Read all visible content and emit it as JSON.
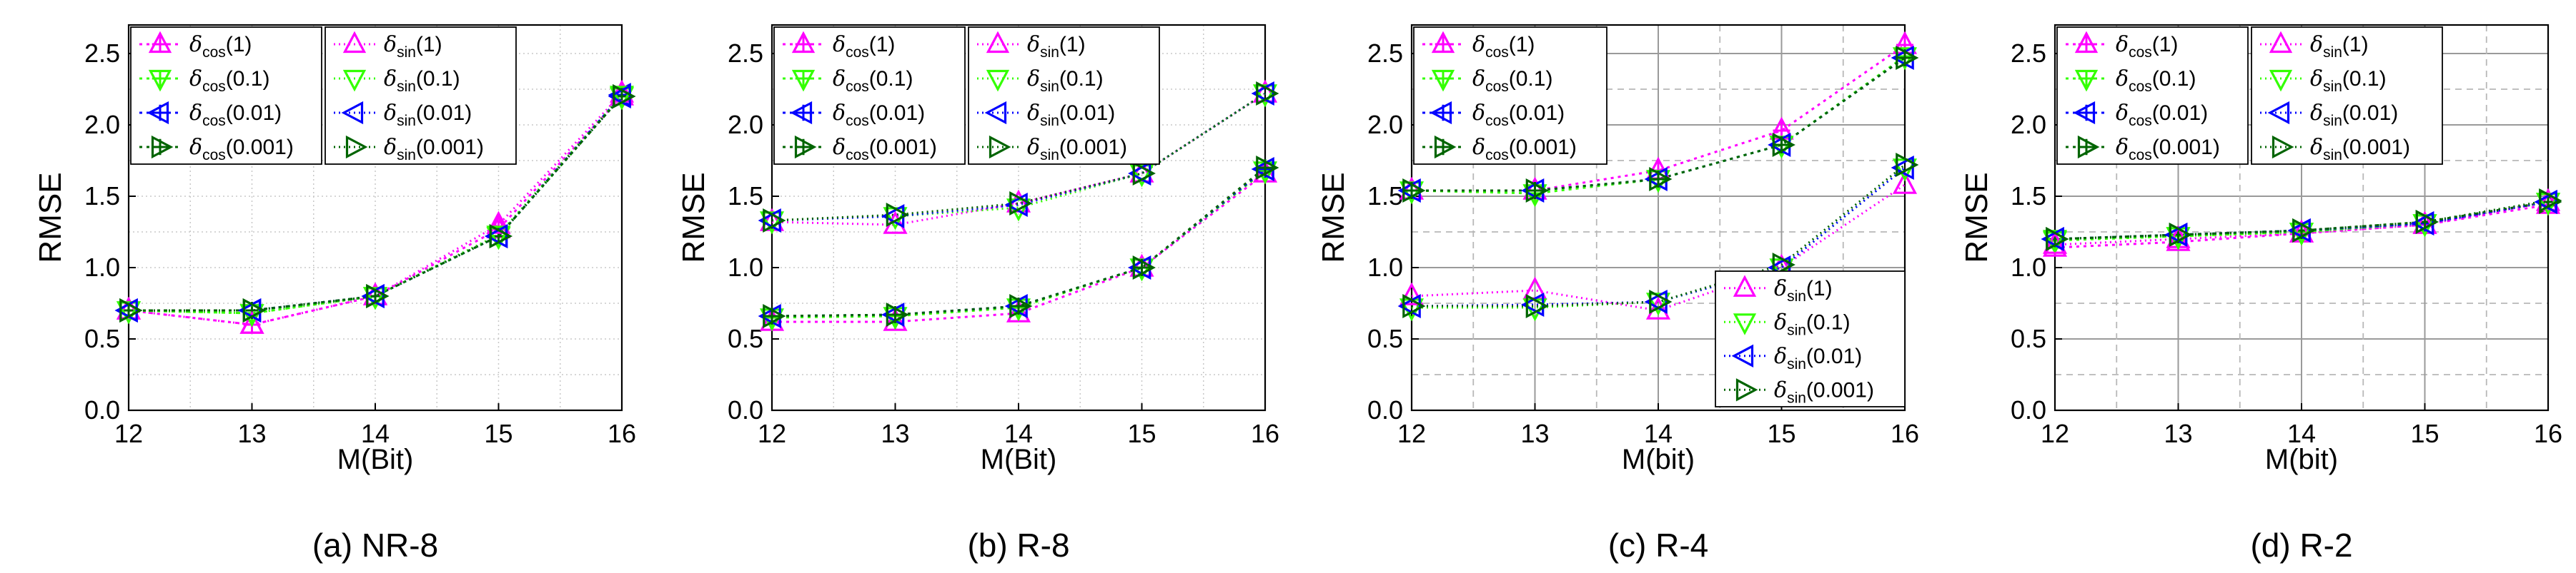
{
  "series_styles": [
    {
      "key": "cos1",
      "color": "#ff00ff",
      "marker": "tri-up-plus",
      "dash": "4,6"
    },
    {
      "key": "cos01",
      "color": "#33ff00",
      "marker": "tri-down-plus",
      "dash": "4,6"
    },
    {
      "key": "cos001",
      "color": "#0000ff",
      "marker": "tri-left-plus",
      "dash": "4,6"
    },
    {
      "key": "cos0001",
      "color": "#006400",
      "marker": "tri-right-plus",
      "dash": "4,6"
    },
    {
      "key": "sin1",
      "color": "#ff00ff",
      "marker": "tri-up",
      "dash": "2,5"
    },
    {
      "key": "sin01",
      "color": "#33ff00",
      "marker": "tri-down",
      "dash": "2,5"
    },
    {
      "key": "sin001",
      "color": "#0000ff",
      "marker": "tri-left",
      "dash": "2,5"
    },
    {
      "key": "sin0001",
      "color": "#006400",
      "marker": "tri-right",
      "dash": "2,5"
    }
  ],
  "legend_labels": {
    "cos1": {
      "sym": "δ",
      "sub": "cos",
      "arg": "(1)"
    },
    "cos01": {
      "sym": "δ",
      "sub": "cos",
      "arg": "(0.1)"
    },
    "cos001": {
      "sym": "δ",
      "sub": "cos",
      "arg": "(0.01)"
    },
    "cos0001": {
      "sym": "δ",
      "sub": "cos",
      "arg": "(0.001)"
    },
    "sin1": {
      "sym": "δ",
      "sub": "sin",
      "arg": "(1)"
    },
    "sin01": {
      "sym": "δ",
      "sub": "sin",
      "arg": "(0.1)"
    },
    "sin001": {
      "sym": "δ",
      "sub": "sin",
      "arg": "(0.01)"
    },
    "sin0001": {
      "sym": "δ",
      "sub": "sin",
      "arg": "(0.001)"
    }
  },
  "chart_data": [
    {
      "type": "line",
      "caption": "(a) NR-8",
      "xlabel": "M(Bit)",
      "ylabel": "RMSE",
      "x": [
        12,
        13,
        14,
        15,
        16
      ],
      "xlim": [
        12,
        16
      ],
      "ylim": [
        0,
        2.7
      ],
      "yticks": [
        0.0,
        0.5,
        1.0,
        1.5,
        2.0,
        2.5
      ],
      "grid": "minor-dotted",
      "legend_placement": "top-left",
      "legend_columns": [
        [
          "cos1",
          "cos01",
          "cos001",
          "cos0001"
        ],
        [
          "sin1",
          "sin01",
          "sin001",
          "sin0001"
        ]
      ],
      "series": [
        {
          "key": "cos1",
          "values": [
            0.7,
            0.6,
            0.8,
            1.27,
            2.2
          ]
        },
        {
          "key": "cos01",
          "values": [
            0.7,
            0.68,
            0.8,
            1.22,
            2.2
          ]
        },
        {
          "key": "cos001",
          "values": [
            0.7,
            0.7,
            0.8,
            1.22,
            2.21
          ]
        },
        {
          "key": "cos0001",
          "values": [
            0.7,
            0.7,
            0.8,
            1.22,
            2.2
          ]
        },
        {
          "key": "sin1",
          "values": [
            0.7,
            0.6,
            0.8,
            1.3,
            2.22
          ]
        },
        {
          "key": "sin01",
          "values": [
            0.7,
            0.68,
            0.8,
            1.23,
            2.21
          ]
        },
        {
          "key": "sin001",
          "values": [
            0.7,
            0.7,
            0.8,
            1.22,
            2.2
          ]
        },
        {
          "key": "sin0001",
          "values": [
            0.7,
            0.7,
            0.8,
            1.22,
            2.2
          ]
        }
      ]
    },
    {
      "type": "line",
      "caption": "(b) R-8",
      "xlabel": "M(Bit)",
      "ylabel": "RMSE",
      "x": [
        12,
        13,
        14,
        15,
        16
      ],
      "xlim": [
        12,
        16
      ],
      "ylim": [
        0,
        2.7
      ],
      "yticks": [
        0.0,
        0.5,
        1.0,
        1.5,
        2.0,
        2.5
      ],
      "grid": "minor-dotted",
      "legend_placement": "top-left",
      "legend_columns": [
        [
          "cos1",
          "cos01",
          "cos001",
          "cos0001"
        ],
        [
          "sin1",
          "sin01",
          "sin001",
          "sin0001"
        ]
      ],
      "series": [
        {
          "key": "cos1",
          "values": [
            0.62,
            0.62,
            0.68,
            1.0,
            1.66
          ]
        },
        {
          "key": "cos01",
          "values": [
            0.65,
            0.66,
            0.72,
            1.0,
            1.68
          ]
        },
        {
          "key": "cos001",
          "values": [
            0.66,
            0.67,
            0.73,
            1.0,
            1.69
          ]
        },
        {
          "key": "cos0001",
          "values": [
            0.66,
            0.67,
            0.73,
            1.0,
            1.7
          ]
        },
        {
          "key": "sin1",
          "values": [
            1.32,
            1.3,
            1.45,
            1.66,
            2.22
          ]
        },
        {
          "key": "sin01",
          "values": [
            1.33,
            1.36,
            1.42,
            1.66,
            2.22
          ]
        },
        {
          "key": "sin001",
          "values": [
            1.33,
            1.36,
            1.44,
            1.66,
            2.22
          ]
        },
        {
          "key": "sin0001",
          "values": [
            1.33,
            1.37,
            1.45,
            1.66,
            2.22
          ]
        }
      ]
    },
    {
      "type": "line",
      "caption": "(c) R-4",
      "xlabel": "M(bit)",
      "ylabel": "RMSE",
      "x": [
        12,
        13,
        14,
        15,
        16
      ],
      "xlim": [
        12,
        16
      ],
      "ylim": [
        0,
        2.7
      ],
      "yticks": [
        0.0,
        0.5,
        1.0,
        1.5,
        2.0,
        2.5
      ],
      "grid": "major-solid-minor-dashed",
      "legend_placement": "split: cos top-left, sin bottom-right",
      "legend_columns": [
        [
          "cos1",
          "cos01",
          "cos001",
          "cos0001"
        ]
      ],
      "legend2_columns": [
        [
          "sin1",
          "sin01",
          "sin001",
          "sin0001"
        ]
      ],
      "series": [
        {
          "key": "cos1",
          "values": [
            1.54,
            1.54,
            1.68,
            1.96,
            2.56
          ]
        },
        {
          "key": "cos01",
          "values": [
            1.54,
            1.52,
            1.62,
            1.86,
            2.48
          ]
        },
        {
          "key": "cos001",
          "values": [
            1.54,
            1.54,
            1.62,
            1.86,
            2.47
          ]
        },
        {
          "key": "cos0001",
          "values": [
            1.54,
            1.54,
            1.62,
            1.86,
            2.47
          ]
        },
        {
          "key": "sin1",
          "values": [
            0.8,
            0.84,
            0.7,
            1.0,
            1.58
          ]
        },
        {
          "key": "sin01",
          "values": [
            0.72,
            0.72,
            0.76,
            1.0,
            1.7
          ]
        },
        {
          "key": "sin001",
          "values": [
            0.73,
            0.74,
            0.76,
            1.0,
            1.7
          ]
        },
        {
          "key": "sin0001",
          "values": [
            0.73,
            0.73,
            0.76,
            1.02,
            1.72
          ]
        }
      ]
    },
    {
      "type": "line",
      "caption": "(d) R-2",
      "xlabel": "M(bit)",
      "ylabel": "RMSE",
      "x": [
        12,
        13,
        14,
        15,
        16
      ],
      "xlim": [
        12,
        16
      ],
      "ylim": [
        0,
        2.7
      ],
      "yticks": [
        0.0,
        0.5,
        1.0,
        1.5,
        2.0,
        2.5
      ],
      "grid": "major-solid-minor-dashed",
      "legend_placement": "top-left",
      "legend_columns": [
        [
          "cos1",
          "cos01",
          "cos001",
          "cos0001"
        ],
        [
          "sin1",
          "sin01",
          "sin001",
          "sin0001"
        ]
      ],
      "series": [
        {
          "key": "cos1",
          "values": [
            1.14,
            1.18,
            1.24,
            1.3,
            1.44
          ]
        },
        {
          "key": "cos01",
          "values": [
            1.19,
            1.22,
            1.25,
            1.31,
            1.46
          ]
        },
        {
          "key": "cos001",
          "values": [
            1.2,
            1.23,
            1.26,
            1.31,
            1.46
          ]
        },
        {
          "key": "cos0001",
          "values": [
            1.2,
            1.23,
            1.26,
            1.32,
            1.46
          ]
        },
        {
          "key": "sin1",
          "values": [
            1.16,
            1.2,
            1.24,
            1.3,
            1.46
          ]
        },
        {
          "key": "sin01",
          "values": [
            1.2,
            1.22,
            1.25,
            1.31,
            1.46
          ]
        },
        {
          "key": "sin001",
          "values": [
            1.2,
            1.23,
            1.26,
            1.31,
            1.46
          ]
        },
        {
          "key": "sin0001",
          "values": [
            1.2,
            1.23,
            1.26,
            1.32,
            1.47
          ]
        }
      ]
    }
  ]
}
